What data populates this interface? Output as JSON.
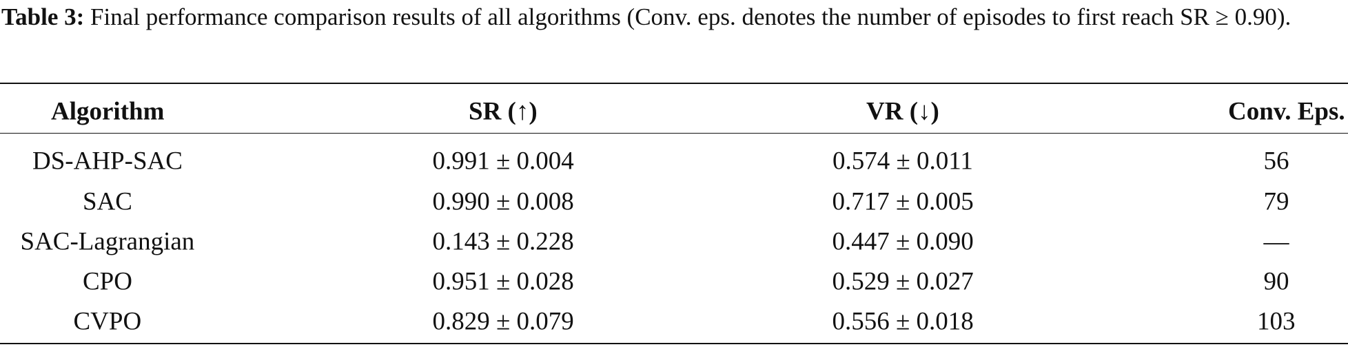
{
  "caption": {
    "label": "Table 3:",
    "text": "Final performance comparison results of all algorithms (Conv. eps. denotes the number of episodes to first reach SR ≥ 0.90)."
  },
  "table": {
    "header": [
      "Algorithm",
      "SR (↑)",
      "VR (↓)",
      "Conv. Eps."
    ],
    "rows": [
      [
        "DS-AHP-SAC",
        "0.991 ± 0.004",
        "0.574 ± 0.011",
        "56"
      ],
      [
        "SAC",
        "0.990 ± 0.008",
        "0.717 ± 0.005",
        "79"
      ],
      [
        "SAC-Lagrangian",
        "0.143 ± 0.228",
        "0.447 ± 0.090",
        "—"
      ],
      [
        "CPO",
        "0.951 ± 0.028",
        "0.529 ± 0.027",
        "90"
      ],
      [
        "CVPO",
        "0.829 ± 0.079",
        "0.556 ± 0.018",
        "103"
      ]
    ]
  }
}
